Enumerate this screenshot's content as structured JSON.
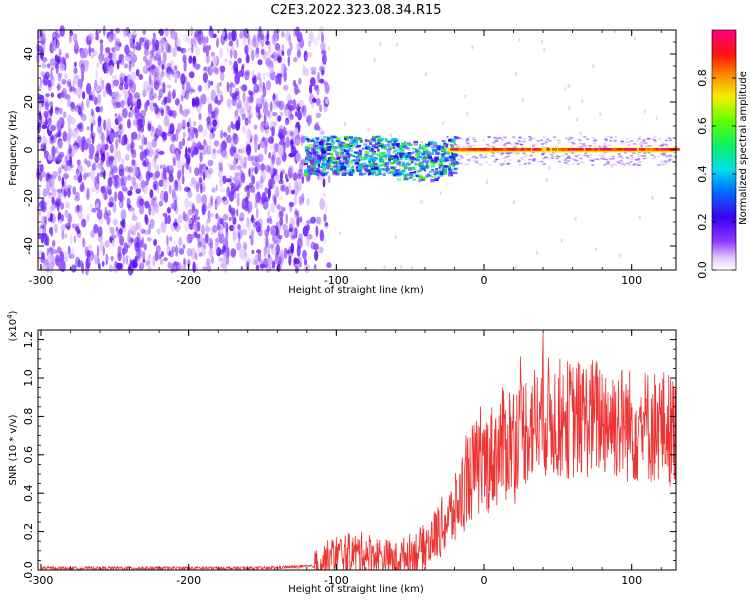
{
  "title": "C2E3.2022.323.08.34.R15",
  "panels": {
    "spectrogram": {
      "xlabel": "Height of straight line (km)",
      "ylabel": "Frequency (Hz)",
      "xlim": [
        -302,
        130
      ],
      "ylim": [
        -50,
        50
      ],
      "xticks": [
        "-300",
        "-200",
        "-100",
        "0",
        "100"
      ],
      "xtick_values": [
        -300,
        -200,
        -100,
        0,
        100
      ],
      "yticks": [
        "-40",
        "-20",
        "0",
        "20",
        "40"
      ],
      "ytick_values": [
        -40,
        -20,
        0,
        20,
        40
      ]
    },
    "colorbar": {
      "label": "Normalized spectral amplitude",
      "ticks": [
        "0.0",
        "0.2",
        "0.4",
        "0.6",
        "0.8"
      ],
      "tick_values": [
        0.0,
        0.2,
        0.4,
        0.6,
        0.8
      ],
      "range": [
        0,
        1
      ],
      "colormap": "rainbow (white → purple → blue → cyan → green → yellow → red → magenta)"
    },
    "snr": {
      "xlabel": "Height of straight line (km)",
      "ylabel": "SNR (10 * v/v)",
      "scale_base": "(x10",
      "scale_exp": "4",
      "scale_close": ")",
      "xlim": [
        -302,
        130
      ],
      "ylim": [
        0,
        1.25
      ],
      "xticks": [
        "-300",
        "-200",
        "-100",
        "0",
        "100"
      ],
      "xtick_values": [
        -300,
        -200,
        -100,
        0,
        100
      ],
      "yticks": [
        "0.0",
        "0.2",
        "0.4",
        "0.6",
        "0.8",
        "1.0",
        "1.2"
      ],
      "ytick_values": [
        0.0,
        0.2,
        0.4,
        0.6,
        0.8,
        1.0,
        1.2
      ],
      "line_color": "#ee3333"
    }
  },
  "chart_data": [
    {
      "type": "heatmap",
      "title": "C2E3.2022.323.08.34.R15",
      "xlabel": "Height of straight line (km)",
      "ylabel": "Frequency (Hz)",
      "xlim": [
        -302,
        130
      ],
      "ylim": [
        -50,
        50
      ],
      "colorbar_label": "Normalized spectral amplitude",
      "regions": [
        {
          "x_range": [
            -302,
            -110
          ],
          "freq_range": [
            -50,
            50
          ],
          "amplitude": [
            0.05,
            0.15
          ]
        },
        {
          "x_range": [
            -122,
            -20
          ],
          "freq_range": [
            -12,
            8
          ],
          "amplitude": [
            0.2,
            0.6
          ]
        },
        {
          "x_range": [
            -20,
            130
          ],
          "freq_range": [
            -1,
            1
          ],
          "amplitude": [
            0.8,
            0.95
          ]
        }
      ]
    },
    {
      "type": "line",
      "xlabel": "Height of straight line (km)",
      "ylabel": "SNR (10 * v/v)",
      "xlim": [
        -302,
        130
      ],
      "ylim": [
        0,
        1.25
      ],
      "series": [
        {
          "x": [
            -300,
            -250,
            -200,
            -150,
            -115,
            -100,
            -80,
            -60,
            -40,
            -20,
            -10,
            0,
            20,
            40,
            60,
            80,
            100,
            120,
            130
          ],
          "y": [
            0.01,
            0.01,
            0.01,
            0.01,
            0.02,
            0.08,
            0.09,
            0.05,
            0.12,
            0.3,
            0.5,
            0.55,
            0.7,
            0.8,
            0.78,
            0.8,
            0.75,
            0.75,
            0.72
          ]
        }
      ]
    }
  ]
}
